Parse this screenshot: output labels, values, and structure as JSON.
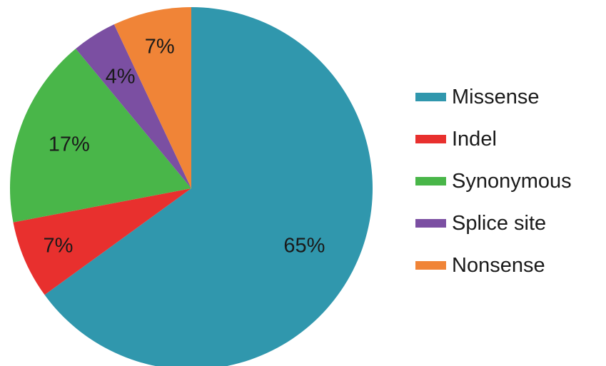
{
  "chart_data": {
    "type": "pie",
    "title": "",
    "legend_position": "right",
    "slices": [
      {
        "label": "Missense",
        "value": 65,
        "value_label": "65%",
        "color": "#3097ad"
      },
      {
        "label": "Indel",
        "value": 7,
        "value_label": "7%",
        "color": "#e8302e"
      },
      {
        "label": "Synonymous",
        "value": 17,
        "value_label": "17%",
        "color": "#49b649"
      },
      {
        "label": "Splice site",
        "value": 4,
        "value_label": "4%",
        "color": "#7b4fa2"
      },
      {
        "label": "Nonsense",
        "value": 7,
        "value_label": "7%",
        "color": "#f08437"
      }
    ]
  }
}
